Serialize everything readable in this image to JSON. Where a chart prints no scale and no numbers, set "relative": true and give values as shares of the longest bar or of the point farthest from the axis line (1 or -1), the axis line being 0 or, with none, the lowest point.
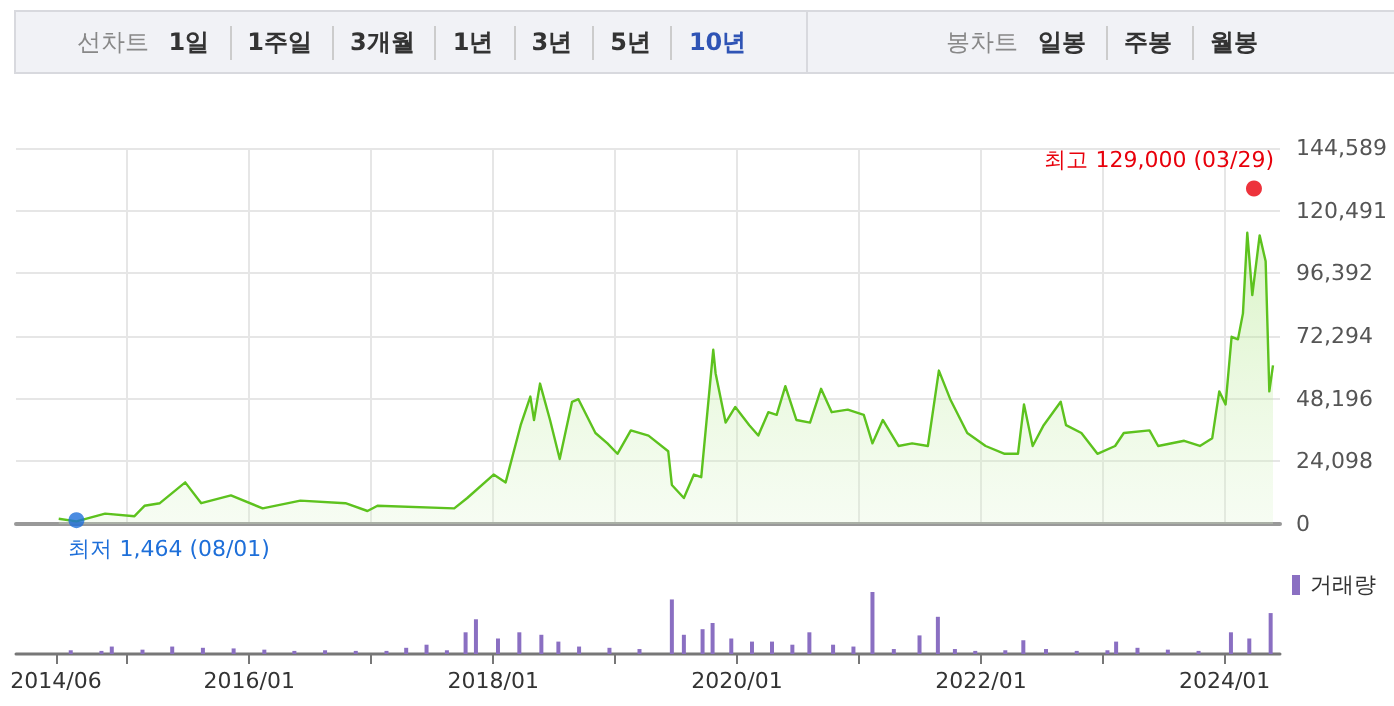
{
  "chart_data": [
    {
      "type": "area",
      "annotations": [
        "선차트",
        "1일",
        "1주일",
        "3개월",
        "1년",
        "3년",
        "5년",
        "10년",
        "봉차트",
        "일봉",
        "주봉",
        "월봉",
        {
          "text": "최고 129,000 (03/29)",
          "x": "2024-03-29",
          "y": 129000
        },
        {
          "text": "최저 1,464 (08/01)",
          "x": "2014-08-01",
          "y": 1464
        }
      ],
      "x": [
        "2014-06-09",
        "2014-08-01",
        "2014-10-26",
        "2015-01-22",
        "2015-02-21",
        "2015-04-08",
        "2015-06-23",
        "2015-08-10",
        "2015-11-07",
        "2016-02-10",
        "2016-06-02",
        "2016-10-15",
        "2016-12-20",
        "2017-01-19",
        "2017-09-06",
        "2017-10-15",
        "2018-01-02",
        "2018-02-07",
        "2018-03-24",
        "2018-04-22",
        "2018-05-03",
        "2018-05-21",
        "2018-06-20",
        "2018-07-19",
        "2018-08-25",
        "2018-09-13",
        "2018-11-03",
        "2018-12-09",
        "2019-01-08",
        "2019-02-17",
        "2019-04-11",
        "2019-06-09",
        "2019-06-20",
        "2019-07-26",
        "2019-08-25",
        "2019-09-16",
        "2019-10-22",
        "2019-10-29",
        "2019-11-28",
        "2019-12-27",
        "2020-02-07",
        "2020-03-05",
        "2020-04-04",
        "2020-04-29",
        "2020-05-25",
        "2020-06-27",
        "2020-08-07",
        "2020-09-09",
        "2020-10-11",
        "2020-11-28",
        "2021-01-15",
        "2021-02-10",
        "2021-03-13",
        "2021-04-29",
        "2021-06-09",
        "2021-07-26",
        "2021-08-28",
        "2021-10-01",
        "2021-11-21",
        "2022-01-15",
        "2022-03-13",
        "2022-04-22",
        "2022-05-10",
        "2022-06-05",
        "2022-07-08",
        "2022-08-28",
        "2022-09-13",
        "2022-10-29",
        "2022-12-16",
        "2023-02-07",
        "2023-03-05",
        "2023-05-21",
        "2023-06-16",
        "2023-09-02",
        "2023-10-19",
        "2023-11-25",
        "2023-12-16",
        "2024-01-04",
        "2024-01-22",
        "2024-02-10",
        "2024-02-25",
        "2024-03-09",
        "2024-03-24",
        "2024-04-15",
        "2024-05-03",
        "2024-05-14",
        "2024-05-25"
      ],
      "series": [
        {
          "color": "#5dc21e",
          "values": [
            2000,
            1000,
            4000,
            3000,
            7000,
            8000,
            16000,
            8000,
            11000,
            6000,
            9000,
            8000,
            5000,
            7000,
            6000,
            10000,
            19000,
            16000,
            38000,
            49000,
            40000,
            54000,
            40000,
            25000,
            47000,
            48000,
            35000,
            31000,
            27000,
            36000,
            34000,
            28000,
            15000,
            10000,
            19000,
            18000,
            67000,
            58000,
            39000,
            45000,
            38000,
            34000,
            43000,
            42000,
            53000,
            40000,
            39000,
            52000,
            43000,
            44000,
            42000,
            31000,
            40000,
            30000,
            31000,
            30000,
            59000,
            48000,
            35000,
            30000,
            27000,
            27000,
            46000,
            30000,
            38000,
            47000,
            38000,
            35000,
            27000,
            30000,
            35000,
            36000,
            30000,
            32000,
            30000,
            33000,
            51000,
            46000,
            72000,
            71000,
            81000,
            112000,
            88000,
            111000,
            101000,
            51000,
            61000
          ]
        },
        {
          "type": "scatter",
          "marker": "circle",
          "x": [
            "2024-03-29",
            "2014-08-01"
          ],
          "values": [
            129000,
            1464
          ],
          "colors": [
            "#e8000b",
            "#1e6fd9"
          ]
        }
      ],
      "xlim": [
        "2014-02-01",
        "2024-06-15"
      ],
      "xticks": [
        {
          "value": "2015-01",
          "label": null
        },
        {
          "value": "2016-01",
          "label": null
        },
        {
          "value": "2017-01",
          "label": null
        },
        {
          "value": "2018-01",
          "label": null
        },
        {
          "value": "2019-01",
          "label": null
        },
        {
          "value": "2020-01",
          "label": null
        },
        {
          "value": "2021-01",
          "label": null
        },
        {
          "value": "2022-01",
          "label": null
        },
        {
          "value": "2023-01",
          "label": null
        },
        {
          "value": "2024-01",
          "label": null
        }
      ],
      "ylim": [
        0,
        144589
      ],
      "yticks": [
        0,
        {
          "value": 24098,
          "label": "24,098"
        },
        {
          "value": 48196,
          "label": "48,196"
        },
        {
          "value": 72294,
          "label": "72,294"
        },
        {
          "value": 96392,
          "label": "96,392"
        },
        {
          "value": 120491,
          "label": "120,491"
        },
        {
          "value": 144589,
          "label": "144,589"
        }
      ],
      "tick_labels": "y",
      "grid": true,
      "marker": "none"
    },
    {
      "type": "bar",
      "relative": true,
      "legend": "top right",
      "x": [
        "2014-07-15",
        "2014-10-15",
        "2014-11-15",
        "2015-02-15",
        "2015-05-15",
        "2015-08-15",
        "2015-11-15",
        "2016-02-15",
        "2016-05-15",
        "2016-08-15",
        "2016-11-15",
        "2017-02-15",
        "2017-04-15",
        "2017-06-15",
        "2017-08-15",
        "2017-10-10",
        "2017-11-10",
        "2018-01-15",
        "2018-03-20",
        "2018-05-25",
        "2018-07-15",
        "2018-09-15",
        "2018-12-15",
        "2019-03-15",
        "2019-06-20",
        "2019-07-26",
        "2019-09-20",
        "2019-10-20",
        "2019-12-15",
        "2020-02-15",
        "2020-04-15",
        "2020-06-15",
        "2020-08-05",
        "2020-10-15",
        "2020-12-15",
        "2021-02-10",
        "2021-04-15",
        "2021-07-01",
        "2021-08-25",
        "2021-10-15",
        "2021-12-15",
        "2022-03-15",
        "2022-05-08",
        "2022-07-15",
        "2022-10-15",
        "2023-01-15",
        "2023-02-10",
        "2023-04-15",
        "2023-07-15",
        "2023-10-15",
        "2024-01-20",
        "2024-03-15",
        "2024-05-18"
      ],
      "series": [
        {
          "name": "거래량",
          "color": "#8a6fc2",
          "values": [
            0.06,
            0.05,
            0.12,
            0.07,
            0.12,
            0.1,
            0.09,
            0.07,
            0.05,
            0.06,
            0.05,
            0.05,
            0.1,
            0.15,
            0.06,
            0.35,
            0.56,
            0.25,
            0.35,
            0.31,
            0.2,
            0.12,
            0.1,
            0.08,
            0.88,
            0.31,
            0.4,
            0.5,
            0.25,
            0.2,
            0.2,
            0.15,
            0.35,
            0.15,
            0.12,
            1,
            0.08,
            0.3,
            0.6,
            0.08,
            0.05,
            0.06,
            0.22,
            0.08,
            0.05,
            0.06,
            0.2,
            0.1,
            0.07,
            0.05,
            0.35,
            0.25,
            0.66
          ]
        }
      ],
      "xlim": [
        "2014-02-01",
        "2024-06-15"
      ],
      "xticks": [
        {
          "value": "2014-06",
          "label": "2014/06"
        },
        {
          "value": "2015-01",
          "label": null
        },
        {
          "value": "2016-01",
          "label": "2016/01"
        },
        {
          "value": "2017-01",
          "label": null
        },
        {
          "value": "2018-01",
          "label": "2018/01"
        },
        {
          "value": "2019-01",
          "label": null
        },
        {
          "value": "2020-01",
          "label": "2020/01"
        },
        {
          "value": "2021-01",
          "label": null
        },
        {
          "value": "2022-01",
          "label": "2022/01"
        },
        {
          "value": "2023-01",
          "label": null
        },
        {
          "value": "2024-01",
          "label": "2024/01"
        }
      ],
      "tick_labels": "x"
    }
  ]
}
